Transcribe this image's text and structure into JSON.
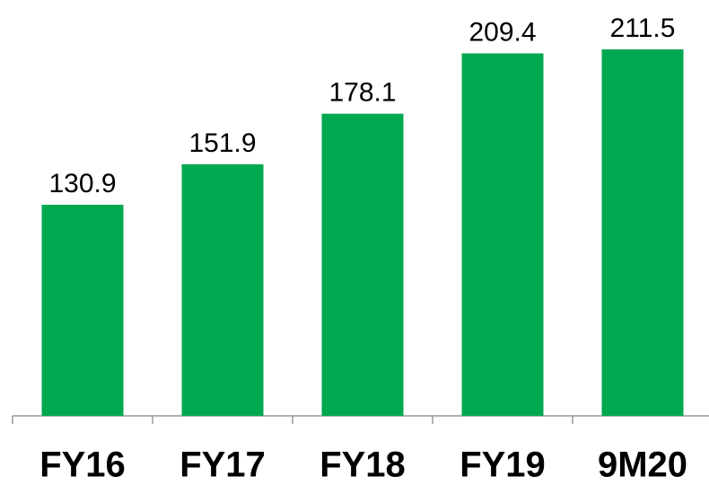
{
  "chart_data": {
    "type": "bar",
    "categories": [
      "FY16",
      "FY17",
      "FY18",
      "FY19",
      "9M20"
    ],
    "values": [
      130.9,
      151.9,
      178.1,
      209.4,
      211.5
    ],
    "color": "#00a84f",
    "ylim": [
      21.4,
      237.1
    ]
  }
}
